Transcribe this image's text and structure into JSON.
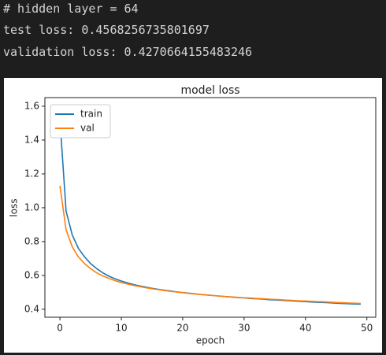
{
  "output_lines": [
    "# hidden layer = 64",
    "test loss: 0.4568256735801697",
    "validation loss: 0.4270664155483246"
  ],
  "chart_data": {
    "type": "line",
    "title": "model loss",
    "x_label": "epoch",
    "y_label": "loss",
    "x": [
      0,
      1,
      2,
      3,
      4,
      5,
      6,
      7,
      8,
      9,
      10,
      11,
      12,
      13,
      14,
      15,
      16,
      17,
      18,
      19,
      20,
      21,
      22,
      23,
      24,
      25,
      26,
      27,
      28,
      29,
      30,
      31,
      32,
      33,
      34,
      35,
      36,
      37,
      38,
      39,
      40,
      41,
      42,
      43,
      44,
      45,
      46,
      47,
      48,
      49
    ],
    "series": [
      {
        "name": "train",
        "color": "#1f77b4",
        "values": [
          1.52,
          0.98,
          0.84,
          0.76,
          0.71,
          0.67,
          0.64,
          0.615,
          0.595,
          0.58,
          0.567,
          0.556,
          0.546,
          0.538,
          0.531,
          0.524,
          0.518,
          0.513,
          0.508,
          0.503,
          0.499,
          0.495,
          0.491,
          0.487,
          0.484,
          0.481,
          0.478,
          0.475,
          0.472,
          0.469,
          0.467,
          0.464,
          0.462,
          0.46,
          0.457,
          0.455,
          0.453,
          0.451,
          0.449,
          0.447,
          0.445,
          0.443,
          0.441,
          0.44,
          0.438,
          0.436,
          0.434,
          0.433,
          0.431,
          0.43
        ]
      },
      {
        "name": "val",
        "color": "#ff7f0e",
        "values": [
          1.13,
          0.87,
          0.77,
          0.71,
          0.67,
          0.64,
          0.615,
          0.597,
          0.582,
          0.569,
          0.558,
          0.549,
          0.541,
          0.534,
          0.527,
          0.521,
          0.516,
          0.511,
          0.506,
          0.502,
          0.498,
          0.494,
          0.49,
          0.487,
          0.484,
          0.481,
          0.478,
          0.475,
          0.473,
          0.47,
          0.468,
          0.466,
          0.464,
          0.462,
          0.46,
          0.458,
          0.456,
          0.454,
          0.452,
          0.45,
          0.449,
          0.447,
          0.445,
          0.444,
          0.442,
          0.44,
          0.439,
          0.437,
          0.436,
          0.434
        ]
      }
    ],
    "xlim": [
      -2.45,
      51.45
    ],
    "xticks": [
      0,
      10,
      20,
      30,
      40,
      50
    ],
    "ylim": [
      0.353,
      1.651
    ],
    "yticks": [
      0.4,
      0.6,
      0.8,
      {
        "value": 1,
        "label": "1.0"
      },
      1.2,
      1.4,
      1.6
    ],
    "legend": "upper left",
    "grid": false
  }
}
